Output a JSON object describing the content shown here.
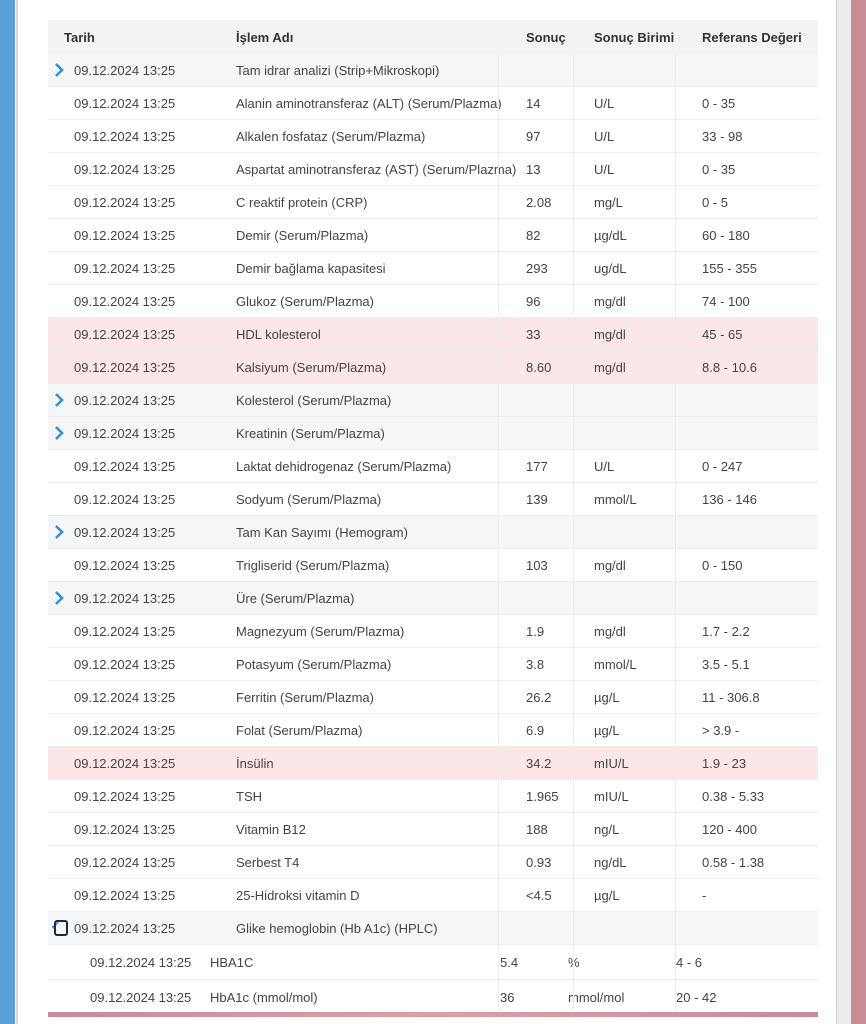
{
  "table": {
    "headers": {
      "date": "Tarih",
      "name": "İşlem Adı",
      "result": "Sonuç",
      "unit": "Sonuç Birimi",
      "ref": "Referans Değeri"
    },
    "rows": [
      {
        "kind": "group",
        "date": "09.12.2024 13:25",
        "name": "Tam idrar analizi (Strip+Mikroskopi)",
        "result": "",
        "unit": "",
        "ref": ""
      },
      {
        "kind": "normal",
        "date": "09.12.2024 13:25",
        "name": "Alanin aminotransferaz (ALT) (Serum/Plazma)",
        "result": "14",
        "unit": "U/L",
        "ref": "0 - 35"
      },
      {
        "kind": "normal",
        "date": "09.12.2024 13:25",
        "name": "Alkalen fosfataz (Serum/Plazma)",
        "result": "97",
        "unit": "U/L",
        "ref": "33 - 98"
      },
      {
        "kind": "normal",
        "date": "09.12.2024 13:25",
        "name": "Aspartat aminotransferaz (AST) (Serum/Plazma)",
        "result": "13",
        "unit": "U/L",
        "ref": "0 - 35"
      },
      {
        "kind": "normal",
        "date": "09.12.2024 13:25",
        "name": "C reaktif protein (CRP)",
        "result": "2.08",
        "unit": "mg/L",
        "ref": "0 - 5"
      },
      {
        "kind": "normal",
        "date": "09.12.2024 13:25",
        "name": "Demir (Serum/Plazma)",
        "result": "82",
        "unit": "µg/dL",
        "ref": "60 - 180"
      },
      {
        "kind": "normal",
        "date": "09.12.2024 13:25",
        "name": "Demir bağlama kapasitesi",
        "result": "293",
        "unit": "ug/dL",
        "ref": "155 - 355"
      },
      {
        "kind": "normal",
        "date": "09.12.2024 13:25",
        "name": "Glukoz (Serum/Plazma)",
        "result": "96",
        "unit": "mg/dl",
        "ref": "74 - 100"
      },
      {
        "kind": "abnormal",
        "date": "09.12.2024 13:25",
        "name": "HDL kolesterol",
        "result": "33",
        "unit": "mg/dl",
        "ref": "45 - 65"
      },
      {
        "kind": "abnormal",
        "date": "09.12.2024 13:25",
        "name": "Kalsiyum (Serum/Plazma)",
        "result": "8.60",
        "unit": "mg/dl",
        "ref": "8.8 - 10.6"
      },
      {
        "kind": "group",
        "date": "09.12.2024 13:25",
        "name": "Kolesterol (Serum/Plazma)",
        "result": "",
        "unit": "",
        "ref": ""
      },
      {
        "kind": "group",
        "date": "09.12.2024 13:25",
        "name": "Kreatinin (Serum/Plazma)",
        "result": "",
        "unit": "",
        "ref": ""
      },
      {
        "kind": "normal",
        "date": "09.12.2024 13:25",
        "name": "Laktat dehidrogenaz (Serum/Plazma)",
        "result": "177",
        "unit": "U/L",
        "ref": "0 - 247"
      },
      {
        "kind": "normal",
        "date": "09.12.2024 13:25",
        "name": "Sodyum (Serum/Plazma)",
        "result": "139",
        "unit": "mmol/L",
        "ref": "136 - 146"
      },
      {
        "kind": "group",
        "date": "09.12.2024 13:25",
        "name": "Tam Kan Sayımı (Hemogram)",
        "result": "",
        "unit": "",
        "ref": ""
      },
      {
        "kind": "normal",
        "date": "09.12.2024 13:25",
        "name": "Trigliserid (Serum/Plazma)",
        "result": "103",
        "unit": "mg/dl",
        "ref": "0 - 150"
      },
      {
        "kind": "group",
        "date": "09.12.2024 13:25",
        "name": "Üre (Serum/Plazma)",
        "result": "",
        "unit": "",
        "ref": ""
      },
      {
        "kind": "normal",
        "date": "09.12.2024 13:25",
        "name": "Magnezyum (Serum/Plazma)",
        "result": "1.9",
        "unit": "mg/dl",
        "ref": "1.7 - 2.2"
      },
      {
        "kind": "normal",
        "date": "09.12.2024 13:25",
        "name": "Potasyum (Serum/Plazma)",
        "result": "3.8",
        "unit": "mmol/L",
        "ref": "3.5 - 5.1"
      },
      {
        "kind": "normal",
        "date": "09.12.2024 13:25",
        "name": "Ferritin (Serum/Plazma)",
        "result": "26.2",
        "unit": "µg/L",
        "ref": "11 - 306.8"
      },
      {
        "kind": "normal",
        "date": "09.12.2024 13:25",
        "name": "Folat (Serum/Plazma)",
        "result": "6.9",
        "unit": "µg/L",
        "ref": "> 3.9 -"
      },
      {
        "kind": "abnormal",
        "date": "09.12.2024 13:25",
        "name": "İnsülin",
        "result": "34.2",
        "unit": "mIU/L",
        "ref": "1.9 - 23"
      },
      {
        "kind": "normal",
        "date": "09.12.2024 13:25",
        "name": "TSH",
        "result": "1.965",
        "unit": "mIU/L",
        "ref": "0.38 - 5.33"
      },
      {
        "kind": "normal",
        "date": "09.12.2024 13:25",
        "name": "Vitamin B12",
        "result": "188",
        "unit": "ng/L",
        "ref": "120 - 400"
      },
      {
        "kind": "normal",
        "date": "09.12.2024 13:25",
        "name": "Serbest T4",
        "result": "0.93",
        "unit": "ng/dL",
        "ref": "0.58 - 1.38"
      },
      {
        "kind": "normal",
        "date": "09.12.2024 13:25",
        "name": "25-Hidroksi vitamin D",
        "result": "<4.5",
        "unit": "µg/L",
        "ref": "-"
      },
      {
        "kind": "expanded",
        "date": "09.12.2024 13:25",
        "name": "Glike hemoglobin (Hb A1c) (HPLC)",
        "result": "",
        "unit": "",
        "ref": ""
      },
      {
        "kind": "sub",
        "date": "09.12.2024 13:25",
        "name": "HBA1C",
        "result": "5.4",
        "unit": "%",
        "ref": "4 - 6"
      },
      {
        "kind": "sub",
        "date": "09.12.2024 13:25",
        "name": "HbA1c (mmol/mol)",
        "result": "36",
        "unit": "mmol/mol",
        "ref": "20 - 42"
      }
    ]
  },
  "colors": {
    "abnormal_bg": "#fbe6e8",
    "group_bg": "#f5f6f7",
    "chevron": "#3a8fd0"
  },
  "icons": {
    "group_toggle": "chevron-right-icon",
    "expanded_toggle": "checkbox-checked-icon"
  }
}
